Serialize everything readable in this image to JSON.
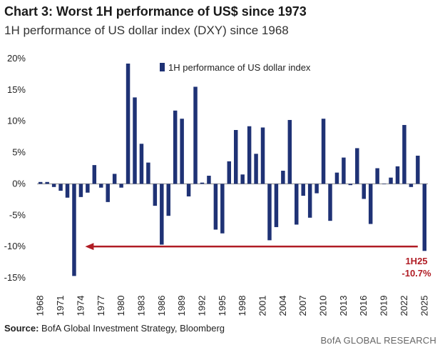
{
  "title": "Chart 3: Worst 1H performance of US$ since 1973",
  "subtitle": "1H performance of US dollar index (DXY) since 1968",
  "source_label": "Source:",
  "source_text": " BofA Global Investment Strategy, Bloomberg",
  "brand": "BofA GLOBAL RESEARCH",
  "colors": {
    "bar": "#1f3275",
    "arrow": "#b01c24",
    "annotation": "#b01c24",
    "baseline": "#888888"
  },
  "chart_data": {
    "type": "bar",
    "series": [
      {
        "name": "1H performance of US dollar index"
      }
    ],
    "years": [
      1968,
      1969,
      1970,
      1971,
      1972,
      1973,
      1974,
      1975,
      1976,
      1977,
      1978,
      1979,
      1980,
      1981,
      1982,
      1983,
      1984,
      1985,
      1986,
      1987,
      1988,
      1989,
      1990,
      1991,
      1992,
      1993,
      1994,
      1995,
      1996,
      1997,
      1998,
      1999,
      2000,
      2001,
      2002,
      2003,
      2004,
      2005,
      2006,
      2007,
      2008,
      2009,
      2010,
      2011,
      2012,
      2013,
      2014,
      2015,
      2016,
      2017,
      2018,
      2019,
      2020,
      2021,
      2022,
      2023,
      2024,
      2025
    ],
    "values": [
      0.3,
      0.3,
      -0.5,
      -1.1,
      -2.2,
      -14.7,
      -2.1,
      -1.4,
      3.0,
      -0.6,
      -2.9,
      1.6,
      -0.6,
      19.2,
      13.8,
      6.4,
      3.4,
      -3.5,
      -9.7,
      -5.1,
      11.7,
      10.4,
      -2.0,
      15.5,
      0.2,
      1.3,
      -7.3,
      -7.9,
      3.6,
      8.6,
      1.5,
      9.2,
      4.8,
      9.0,
      -9.0,
      -6.9,
      2.1,
      10.2,
      -6.5,
      -1.9,
      -5.4,
      -1.5,
      10.4,
      -5.9,
      1.8,
      4.2,
      -0.2,
      5.7,
      -2.4,
      -6.4,
      2.5,
      0.0,
      1.0,
      2.8,
      9.4,
      -0.5,
      4.5,
      -10.7
    ],
    "xtick_labels": [
      "1968",
      "1971",
      "1974",
      "1977",
      "1980",
      "1983",
      "1986",
      "1989",
      "1992",
      "1995",
      "1998",
      "2001",
      "2004",
      "2007",
      "2010",
      "2013",
      "2016",
      "2019",
      "2022",
      "2025"
    ],
    "ytick_labels": [
      "20%",
      "15%",
      "10%",
      "5%",
      "0%",
      "-5%",
      "-10%",
      "-15%"
    ],
    "ytick_values": [
      20,
      15,
      10,
      5,
      0,
      -5,
      -10,
      -15
    ],
    "ylim": [
      -15,
      20
    ],
    "xlabel": "",
    "ylabel": "",
    "legend_placement": "top-center",
    "annotation": {
      "label": "1H25",
      "value_label": "-10.7%",
      "arrow_from_year": 2024,
      "arrow_to_year": 1974,
      "arrow_value": -10.0
    },
    "grid": false
  }
}
